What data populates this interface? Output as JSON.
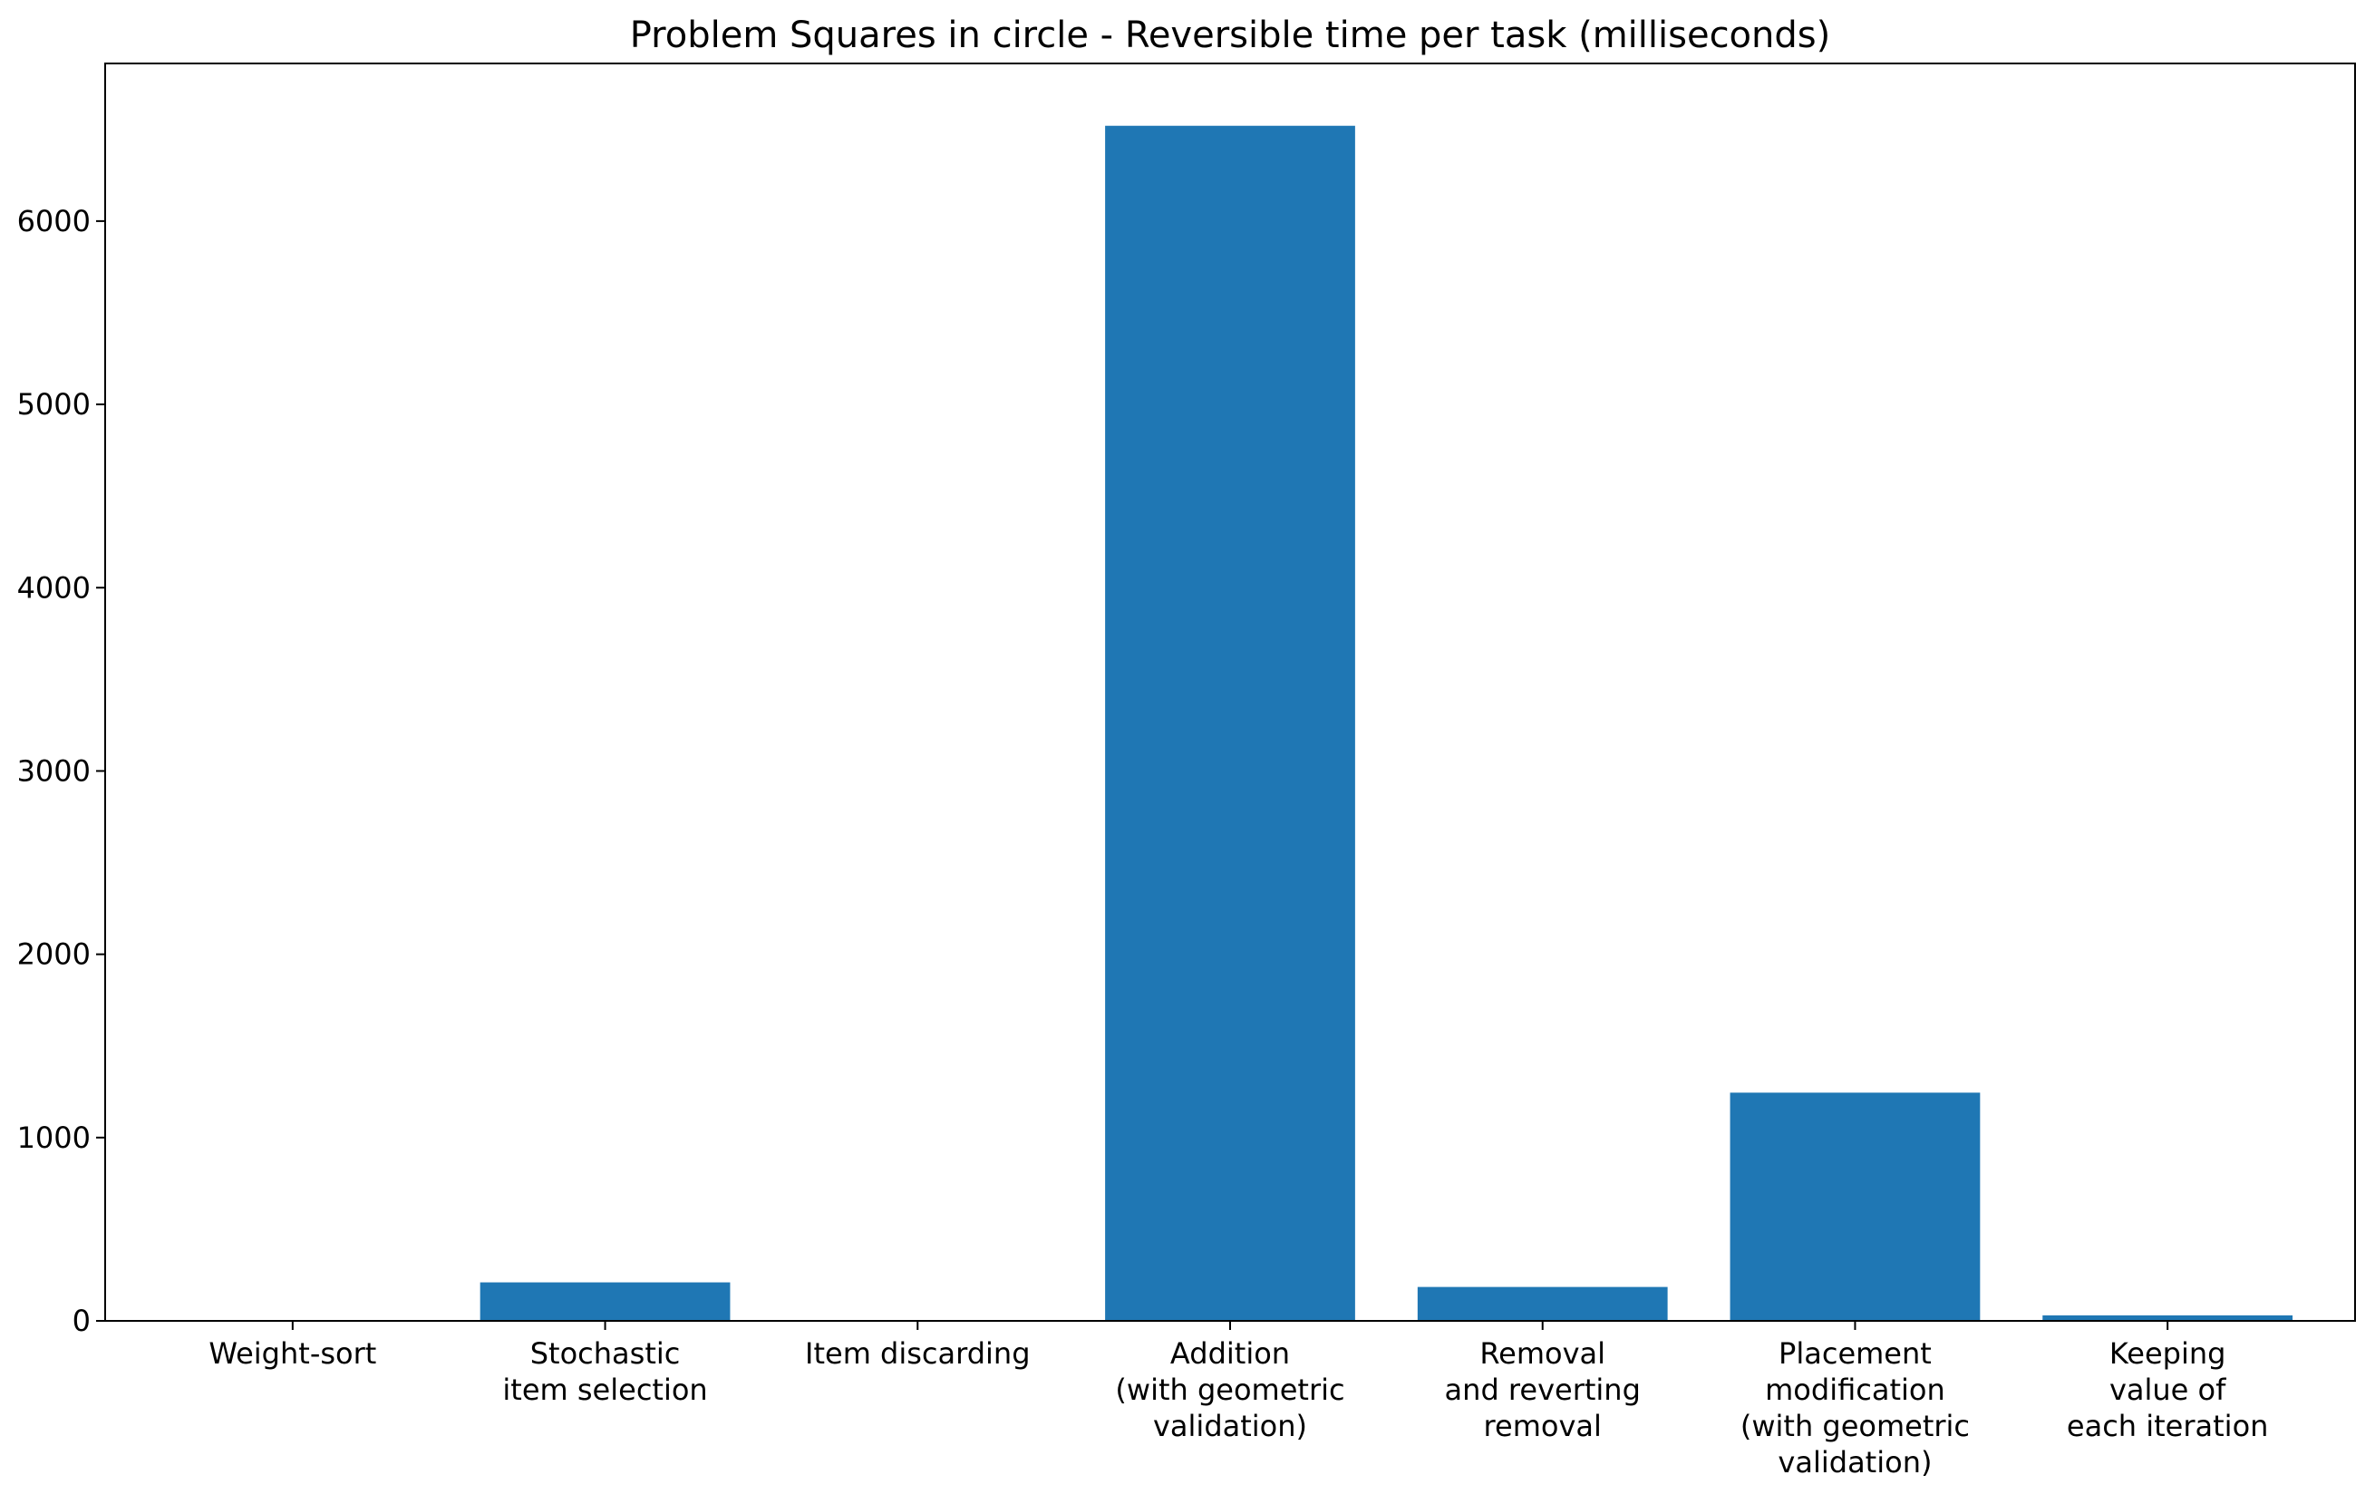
{
  "chart_data": {
    "type": "bar",
    "title": "Problem Squares in circle - Reversible time per task (milliseconds)",
    "xlabel": "",
    "ylabel": "",
    "categories": [
      [
        "Weight-sort"
      ],
      [
        "Stochastic",
        "item selection"
      ],
      [
        "Item discarding"
      ],
      [
        "Addition",
        "(with geometric",
        "validation)"
      ],
      [
        "Removal",
        "and reverting",
        "removal"
      ],
      [
        "Placement",
        "modification",
        "(with geometric",
        "validation)"
      ],
      [
        "Keeping",
        "value of",
        "each iteration"
      ]
    ],
    "values": [
      2,
      210,
      2,
      6520,
      185,
      1245,
      30
    ],
    "ylim": [
      0,
      6860
    ],
    "yticks": [
      0,
      1000,
      2000,
      3000,
      4000,
      5000,
      6000
    ],
    "ytick_labels": [
      "0",
      "1000",
      "2000",
      "3000",
      "4000",
      "5000",
      "6000"
    ],
    "bar_color": "#1f77b4",
    "grid": false,
    "legend": "none"
  }
}
